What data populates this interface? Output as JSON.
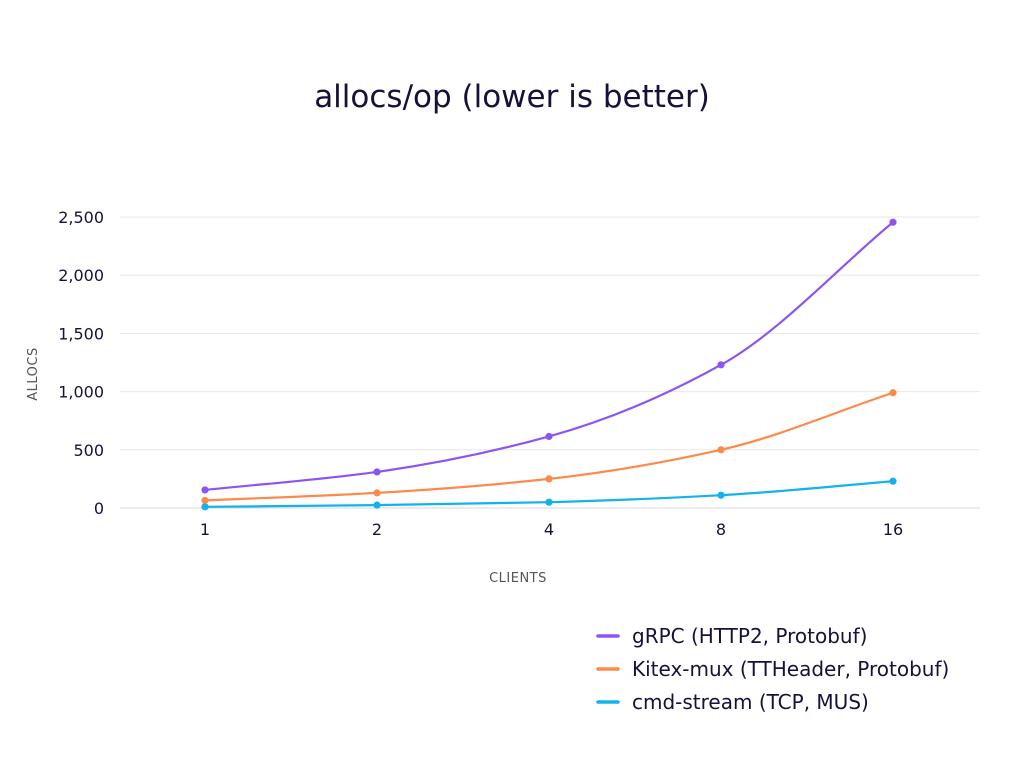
{
  "chart_data": {
    "type": "line",
    "title": "allocs/op (lower is better)",
    "xlabel": "CLIENTS",
    "ylabel": "ALLOCS",
    "categories": [
      "1",
      "2",
      "4",
      "8",
      "16"
    ],
    "ylim": [
      0,
      2500
    ],
    "yticks": [
      0,
      500,
      1000,
      1500,
      2000,
      2500
    ],
    "ytick_labels": [
      "0",
      "500",
      "1,000",
      "1,500",
      "2,000",
      "2,500"
    ],
    "grid": true,
    "legend_position": "bottom-right",
    "series": [
      {
        "name": "gRPC (HTTP2, Protobuf)",
        "color": "#8b55f2",
        "values": [
          155,
          310,
          615,
          1230,
          2455
        ]
      },
      {
        "name": "Kitex-mux (TTHeader, Protobuf)",
        "color": "#fd8a4a",
        "values": [
          65,
          130,
          250,
          500,
          990
        ]
      },
      {
        "name": "cmd-stream (TCP, MUS)",
        "color": "#12b3ec",
        "values": [
          10,
          25,
          50,
          110,
          230
        ]
      }
    ]
  }
}
